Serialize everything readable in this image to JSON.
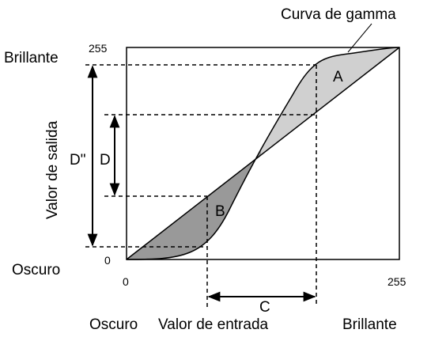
{
  "title": "Curva de gamma",
  "y_axis": {
    "label": "Valor de salida",
    "top": "255",
    "bottom": "0",
    "top_label": "Brillante",
    "bottom_label": "Oscuro"
  },
  "x_axis": {
    "label": "Valor de entrada",
    "left": "0",
    "right": "255",
    "left_label": "Oscuro",
    "right_label": "Brillante"
  },
  "regions": [
    "A",
    "B"
  ],
  "arrows": [
    "D\"",
    "D",
    "C"
  ]
}
